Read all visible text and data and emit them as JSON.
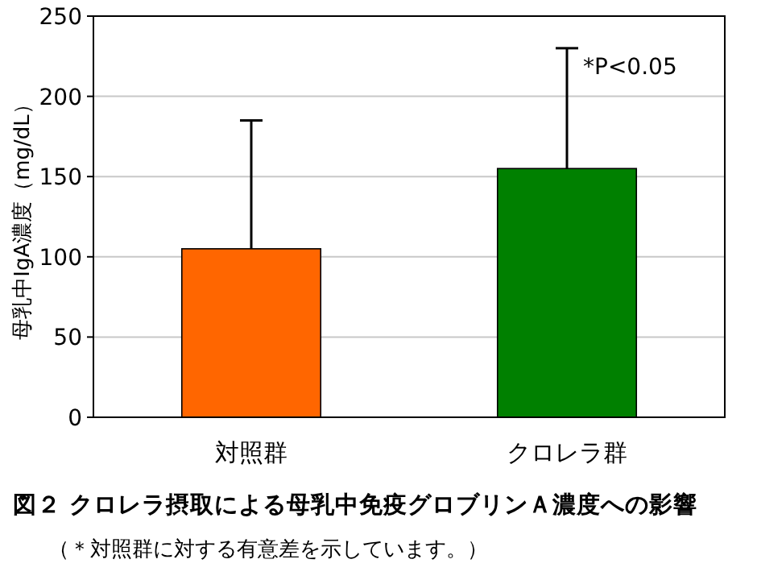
{
  "chart_data": {
    "type": "bar",
    "title": "図２ クロレラ摂取による母乳中免疫グロブリンＡ濃度への影響",
    "ylabel": "母乳中IgA濃度（mg/dL）",
    "categories": [
      "対照群",
      "クロレラ群"
    ],
    "values": [
      105,
      155
    ],
    "colors": [
      "#ff6600",
      "#008000"
    ],
    "errors": [
      [
        105,
        185
      ],
      [
        155,
        230
      ]
    ],
    "ylim": [
      0,
      250
    ],
    "yticks": [
      0,
      50,
      100,
      150,
      200,
      250
    ],
    "grid": "y",
    "annotations": [
      {
        "text": "*P<0.05",
        "x": "クロレラ群",
        "y": 230
      },
      "（＊対照群に対する有意差を示しています。）"
    ]
  }
}
